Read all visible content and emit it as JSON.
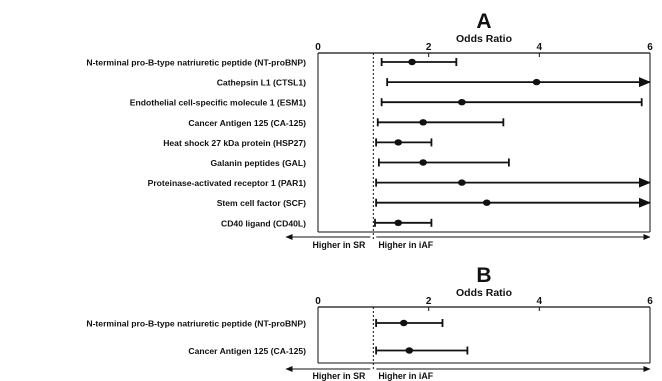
{
  "chart_data": [
    {
      "type": "forest",
      "panel_letter": "A",
      "title": "Odds Ratio",
      "xlim": [
        0,
        6
      ],
      "x_ticks": [
        "0",
        "2",
        "4",
        "6"
      ],
      "reference_line": 1,
      "direction_labels": {
        "left": "Higher in SR",
        "right": "Higher in iAF"
      },
      "rows": [
        {
          "label": "N-terminal pro-B-type natriuretic peptide (NT-proBNP)",
          "or": 1.7,
          "ci_low": 1.15,
          "ci_high": 2.5,
          "ci_high_open": false
        },
        {
          "label": "Cathepsin L1 (CTSL1)",
          "or": 3.95,
          "ci_low": 1.25,
          "ci_high": 6,
          "ci_high_open": true
        },
        {
          "label": "Endothelial cell-specific molecule 1 (ESM1)",
          "or": 2.6,
          "ci_low": 1.15,
          "ci_high": 5.85,
          "ci_high_open": false
        },
        {
          "label": "Cancer Antigen 125 (CA-125)",
          "or": 1.9,
          "ci_low": 1.08,
          "ci_high": 3.35,
          "ci_high_open": false
        },
        {
          "label": "Heat shock 27 kDa protein (HSP27)",
          "or": 1.45,
          "ci_low": 1.05,
          "ci_high": 2.05,
          "ci_high_open": false
        },
        {
          "label": "Galanin peptides (GAL)",
          "or": 1.9,
          "ci_low": 1.1,
          "ci_high": 3.45,
          "ci_high_open": false
        },
        {
          "label": "Proteinase-activated receptor 1 (PAR1)",
          "or": 2.6,
          "ci_low": 1.05,
          "ci_high": 6,
          "ci_high_open": true
        },
        {
          "label": "Stem cell factor (SCF)",
          "or": 3.05,
          "ci_low": 1.05,
          "ci_high": 6,
          "ci_high_open": true
        },
        {
          "label": "CD40 ligand (CD40L)",
          "or": 1.45,
          "ci_low": 1.03,
          "ci_high": 2.05,
          "ci_high_open": false
        }
      ]
    },
    {
      "type": "forest",
      "panel_letter": "B",
      "title": "Odds Ratio",
      "xlim": [
        0,
        6
      ],
      "x_ticks": [
        "0",
        "2",
        "4",
        "6"
      ],
      "reference_line": 1,
      "direction_labels": {
        "left": "Higher in SR",
        "right": "Higher in iAF"
      },
      "rows": [
        {
          "label": "N-terminal pro-B-type natriuretic peptide (NT-proBNP)",
          "or": 1.55,
          "ci_low": 1.05,
          "ci_high": 2.25,
          "ci_high_open": false
        },
        {
          "label": "Cancer Antigen 125 (CA-125)",
          "or": 1.65,
          "ci_low": 1.05,
          "ci_high": 2.7,
          "ci_high_open": false
        }
      ]
    }
  ]
}
